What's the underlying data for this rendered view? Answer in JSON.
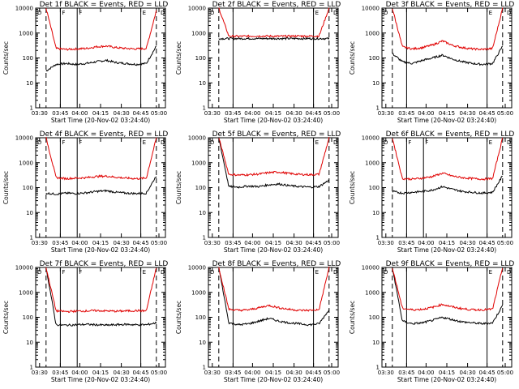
{
  "chart_data": [
    {
      "title": "Det 1f BLACK = Events, RED = LLD",
      "type": "line",
      "xlabel": "Start Time (20-Nov-02 03:24:40)",
      "ylabel": "Counts/sec",
      "yscale": "log",
      "ylim": [
        1,
        10000
      ],
      "x_ticks": [
        "03:30",
        "03:45",
        "04:00",
        "04:15",
        "04:30",
        "04:45",
        "05:00"
      ],
      "y_ticks": [
        "1",
        "10",
        "100",
        "1000",
        "10000"
      ],
      "markers": [
        "D",
        "F",
        "F",
        "E",
        "D"
      ],
      "series": [
        {
          "name": "Events",
          "color": "#000000",
          "values": [
            30,
            55,
            60,
            55,
            60,
            70,
            80,
            65,
            60,
            55,
            60,
            300
          ]
        },
        {
          "name": "LLD",
          "color": "#e00000",
          "values": [
            10000,
            240,
            220,
            230,
            240,
            280,
            300,
            260,
            240,
            230,
            240,
            8000
          ]
        }
      ]
    },
    {
      "title": "Det 2f BLACK = Events, RED = LLD",
      "type": "line",
      "xlabel": "Start Time (20-Nov-02 03:24:40)",
      "ylabel": "Counts/sec",
      "yscale": "log",
      "ylim": [
        1,
        10000
      ],
      "x_ticks": [
        "03:30",
        "03:45",
        "04:00",
        "04:15",
        "04:30",
        "04:45",
        "05:00"
      ],
      "y_ticks": [
        "1",
        "10",
        "100",
        "1000",
        "10000"
      ],
      "markers": [
        "D",
        "E",
        "D"
      ],
      "series": [
        {
          "name": "Events",
          "color": "#000000",
          "values": [
            600,
            600,
            600,
            600,
            600,
            600,
            600,
            600,
            600,
            600,
            600,
            600
          ]
        },
        {
          "name": "LLD",
          "color": "#e00000",
          "values": [
            10000,
            750,
            740,
            750,
            760,
            750,
            740,
            750,
            760,
            750,
            760,
            10000
          ]
        }
      ]
    },
    {
      "title": "Det 3f BLACK = Events, RED = LLD",
      "type": "line",
      "xlabel": "Start Time (20-Nov-02 03:24:40)",
      "ylabel": "Counts/sec",
      "yscale": "log",
      "ylim": [
        1,
        10000
      ],
      "x_ticks": [
        "03:30",
        "03:45",
        "04:00",
        "04:15",
        "04:30",
        "04:45",
        "05:00"
      ],
      "y_ticks": [
        "1",
        "10",
        "100",
        "1000",
        "10000"
      ],
      "markers": [
        "D",
        "E",
        "D"
      ],
      "series": [
        {
          "name": "Events",
          "color": "#000000",
          "values": [
            150,
            70,
            60,
            80,
            100,
            130,
            90,
            70,
            60,
            55,
            60,
            300
          ]
        },
        {
          "name": "LLD",
          "color": "#e00000",
          "values": [
            10000,
            280,
            230,
            260,
            330,
            480,
            320,
            260,
            230,
            220,
            240,
            10000
          ]
        }
      ]
    },
    {
      "title": "Det 4f BLACK = Events, RED = LLD",
      "type": "line",
      "xlabel": "Start Time (20-Nov-02 03:24:40)",
      "ylabel": "Counts/sec",
      "yscale": "log",
      "ylim": [
        1,
        10000
      ],
      "x_ticks": [
        "03:30",
        "03:45",
        "04:00",
        "04:15",
        "04:30",
        "04:45",
        "05:00"
      ],
      "y_ticks": [
        "1",
        "10",
        "100",
        "1000",
        "10000"
      ],
      "markers": [
        "D",
        "F",
        "F",
        "E",
        "D"
      ],
      "series": [
        {
          "name": "Events",
          "color": "#000000",
          "values": [
            60,
            55,
            60,
            58,
            62,
            70,
            75,
            65,
            60,
            58,
            60,
            300
          ]
        },
        {
          "name": "LLD",
          "color": "#e00000",
          "values": [
            10000,
            250,
            230,
            240,
            250,
            280,
            290,
            260,
            240,
            230,
            240,
            10000
          ]
        }
      ]
    },
    {
      "title": "Det 5f BLACK = Events, RED = LLD",
      "type": "line",
      "xlabel": "Start Time (20-Nov-02 03:24:40)",
      "ylabel": "Counts/sec",
      "yscale": "log",
      "ylim": [
        1,
        10000
      ],
      "x_ticks": [
        "03:30",
        "03:45",
        "04:00",
        "04:15",
        "04:30",
        "04:45",
        "05:00"
      ],
      "y_ticks": [
        "1",
        "10",
        "100",
        "1000",
        "10000"
      ],
      "markers": [
        "D",
        "E",
        "D"
      ],
      "series": [
        {
          "name": "Events",
          "color": "#000000",
          "values": [
            10000,
            110,
            105,
            115,
            110,
            130,
            140,
            120,
            110,
            105,
            110,
            200
          ]
        },
        {
          "name": "LLD",
          "color": "#e00000",
          "values": [
            10000,
            340,
            320,
            330,
            350,
            400,
            420,
            370,
            340,
            330,
            340,
            10000
          ]
        }
      ]
    },
    {
      "title": "Det 6f BLACK = Events, RED = LLD",
      "type": "line",
      "xlabel": "Start Time (20-Nov-02 03:24:40)",
      "ylabel": "Counts/sec",
      "yscale": "log",
      "ylim": [
        1,
        10000
      ],
      "x_ticks": [
        "03:30",
        "03:45",
        "04:00",
        "04:15",
        "04:30",
        "04:45",
        "05:00"
      ],
      "y_ticks": [
        "1",
        "10",
        "100",
        "1000",
        "10000"
      ],
      "markers": [
        "D",
        "F",
        "F",
        "E",
        "D"
      ],
      "series": [
        {
          "name": "Events",
          "color": "#000000",
          "values": [
            70,
            60,
            65,
            70,
            80,
            110,
            85,
            70,
            65,
            60,
            65,
            300
          ]
        },
        {
          "name": "LLD",
          "color": "#e00000",
          "values": [
            10000,
            230,
            220,
            240,
            280,
            380,
            290,
            250,
            230,
            220,
            230,
            10000
          ]
        }
      ]
    },
    {
      "title": "Det 7f BLACK = Events, RED = LLD",
      "type": "line",
      "xlabel": "Start Time (20-Nov-02 03:24:40)",
      "ylabel": "Counts/sec",
      "yscale": "log",
      "ylim": [
        1,
        10000
      ],
      "x_ticks": [
        "03:30",
        "03:45",
        "04:00",
        "04:15",
        "04:30",
        "04:45",
        "05:00"
      ],
      "y_ticks": [
        "1",
        "10",
        "100",
        "1000",
        "10000"
      ],
      "markers": [
        "D",
        "F",
        "F",
        "E",
        "D"
      ],
      "series": [
        {
          "name": "Events",
          "color": "#000000",
          "values": [
            10000,
            50,
            48,
            50,
            52,
            50,
            48,
            50,
            52,
            50,
            50,
            60
          ]
        },
        {
          "name": "LLD",
          "color": "#e00000",
          "values": [
            10000,
            180,
            170,
            175,
            180,
            185,
            180,
            175,
            180,
            185,
            180,
            10000
          ]
        }
      ]
    },
    {
      "title": "Det 8f BLACK = Events, RED = LLD",
      "type": "line",
      "xlabel": "Start Time (20-Nov-02 03:24:40)",
      "ylabel": "Counts/sec",
      "yscale": "log",
      "ylim": [
        1,
        10000
      ],
      "x_ticks": [
        "03:30",
        "03:45",
        "04:00",
        "04:15",
        "04:30",
        "04:45",
        "05:00"
      ],
      "y_ticks": [
        "1",
        "10",
        "100",
        "1000",
        "10000"
      ],
      "markers": [
        "D",
        "E",
        "D"
      ],
      "series": [
        {
          "name": "Events",
          "color": "#000000",
          "values": [
            10000,
            60,
            50,
            55,
            70,
            90,
            70,
            60,
            55,
            50,
            55,
            200
          ]
        },
        {
          "name": "LLD",
          "color": "#e00000",
          "values": [
            10000,
            210,
            190,
            200,
            240,
            300,
            240,
            210,
            190,
            190,
            200,
            10000
          ]
        }
      ]
    },
    {
      "title": "Det 9f BLACK = Events, RED = LLD",
      "type": "line",
      "xlabel": "Start Time (20-Nov-02 03:24:40)",
      "ylabel": "Counts/sec",
      "yscale": "log",
      "ylim": [
        1,
        10000
      ],
      "x_ticks": [
        "03:30",
        "03:45",
        "04:00",
        "04:15",
        "04:30",
        "04:45",
        "05:00"
      ],
      "y_ticks": [
        "1",
        "10",
        "100",
        "1000",
        "10000"
      ],
      "markers": [
        "D",
        "E",
        "D"
      ],
      "series": [
        {
          "name": "Events",
          "color": "#000000",
          "values": [
            10000,
            70,
            55,
            60,
            75,
            100,
            80,
            65,
            60,
            55,
            60,
            300
          ]
        },
        {
          "name": "LLD",
          "color": "#e00000",
          "values": [
            10000,
            230,
            200,
            210,
            250,
            330,
            260,
            220,
            200,
            200,
            210,
            10000
          ]
        }
      ]
    }
  ]
}
